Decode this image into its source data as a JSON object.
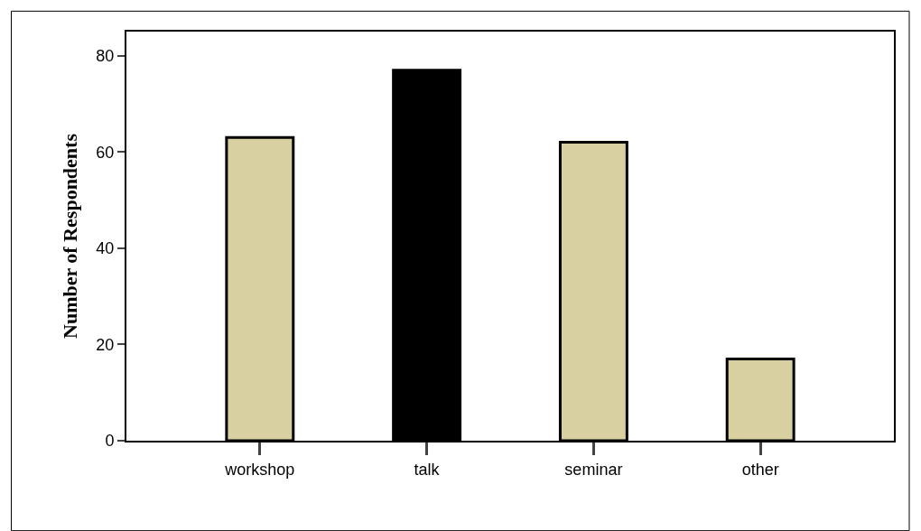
{
  "chart_data": {
    "type": "bar",
    "ylabel": "Number of Respondents",
    "categories": [
      "workshop",
      "talk",
      "seminar",
      "other"
    ],
    "values": [
      63,
      77,
      62,
      17
    ],
    "colors": [
      "#d8d0a0",
      "#000000",
      "#d8d0a0",
      "#d8d0a0"
    ],
    "ylim": [
      0,
      85
    ],
    "yticks": [
      0,
      20,
      40,
      60,
      80
    ],
    "legend": false
  }
}
